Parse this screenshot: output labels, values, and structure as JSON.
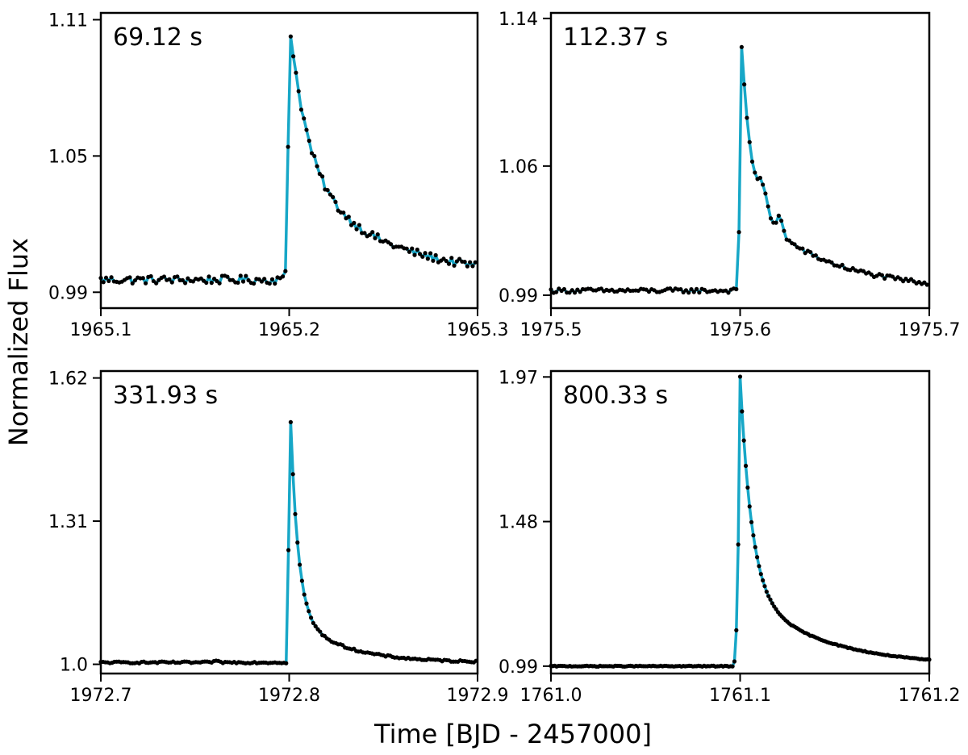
{
  "figure": {
    "xlabel": "Time [BJD - 2457000]",
    "ylabel": "Normalized Flux",
    "line_color": "#17a7c7",
    "marker_color": "#000000"
  },
  "chart_data": [
    {
      "type": "line",
      "label": "69.12 s",
      "xlim": [
        1965.1,
        1965.3
      ],
      "ylim": [
        0.983,
        1.113
      ],
      "xticks": [
        "1965.1",
        "1965.2",
        "1965.3"
      ],
      "xtick_values": [
        1965.1,
        1965.2,
        1965.3
      ],
      "yticks": [
        "0.99",
        "1.05",
        "1.11"
      ],
      "ytick_values": [
        0.99,
        1.05,
        1.11
      ],
      "flare": {
        "start": 1965.1,
        "end": 1965.3,
        "base": 0.9955,
        "noise": 0.0018,
        "t0": 1965.2,
        "rise": 0.003,
        "peak": 1.11,
        "decay": [
          [
            0.07,
            0.01
          ],
          [
            0.045,
            0.05
          ]
        ],
        "bumps": [],
        "dt": 0.0014
      }
    },
    {
      "type": "line",
      "label": "112.37 s",
      "xlim": [
        1975.5,
        1975.7
      ],
      "ylim": [
        0.983,
        1.143
      ],
      "xticks": [
        "1975.5",
        "1975.6",
        "1975.7"
      ],
      "xtick_values": [
        1975.5,
        1975.6,
        1975.7
      ],
      "yticks": [
        "0.99",
        "1.06",
        "1.14"
      ],
      "ytick_values": [
        0.99,
        1.06,
        1.14
      ],
      "flare": {
        "start": 1975.5,
        "end": 1975.7,
        "base": 0.9925,
        "noise": 0.0012,
        "t0": 1975.6,
        "rise": 0.0015,
        "peak": 1.14,
        "decay": [
          [
            0.1,
            0.005
          ],
          [
            0.05,
            0.04
          ]
        ],
        "bumps": [
          [
            1975.612,
            0.006,
            0.012
          ],
          [
            1975.621,
            0.004,
            0.01
          ]
        ],
        "dt": 0.0014
      }
    },
    {
      "type": "line",
      "label": "331.93 s",
      "xlim": [
        1972.7,
        1972.9
      ],
      "ylim": [
        0.98,
        1.635
      ],
      "xticks": [
        "1972.7",
        "1972.8",
        "1972.9"
      ],
      "xtick_values": [
        1972.7,
        1972.8,
        1972.9
      ],
      "yticks": [
        "1.0",
        "1.31",
        "1.62"
      ],
      "ytick_values": [
        1.0,
        1.31,
        1.62
      ],
      "flare": {
        "start": 1972.7,
        "end": 1972.9,
        "base": 1.004,
        "noise": 0.002,
        "t0": 1972.8,
        "rise": 0.0015,
        "peak": 1.62,
        "decay": [
          [
            0.5,
            0.004
          ],
          [
            0.11,
            0.025
          ]
        ],
        "bumps": [
          [
            1972.761,
            0.006,
            0.002
          ]
        ],
        "dt": 0.0012
      }
    },
    {
      "type": "line",
      "label": "800.33 s",
      "xlim": [
        1761.0,
        1761.2
      ],
      "ylim": [
        0.965,
        1.99
      ],
      "xticks": [
        "1761.0",
        "1761.1",
        "1761.2"
      ],
      "xtick_values": [
        1761.0,
        1761.1,
        1761.2
      ],
      "yticks": [
        "0.99",
        "1.48",
        "1.97"
      ],
      "ytick_values": [
        0.99,
        1.48,
        1.97
      ],
      "flare": {
        "start": 1761.0,
        "end": 1761.2,
        "base": 0.99,
        "noise": 0.0015,
        "t0": 1761.1,
        "rise": 0.004,
        "peak": 1.97,
        "decay": [
          [
            0.72,
            0.006
          ],
          [
            0.26,
            0.04
          ]
        ],
        "bumps": [],
        "dt": 0.001
      }
    }
  ]
}
